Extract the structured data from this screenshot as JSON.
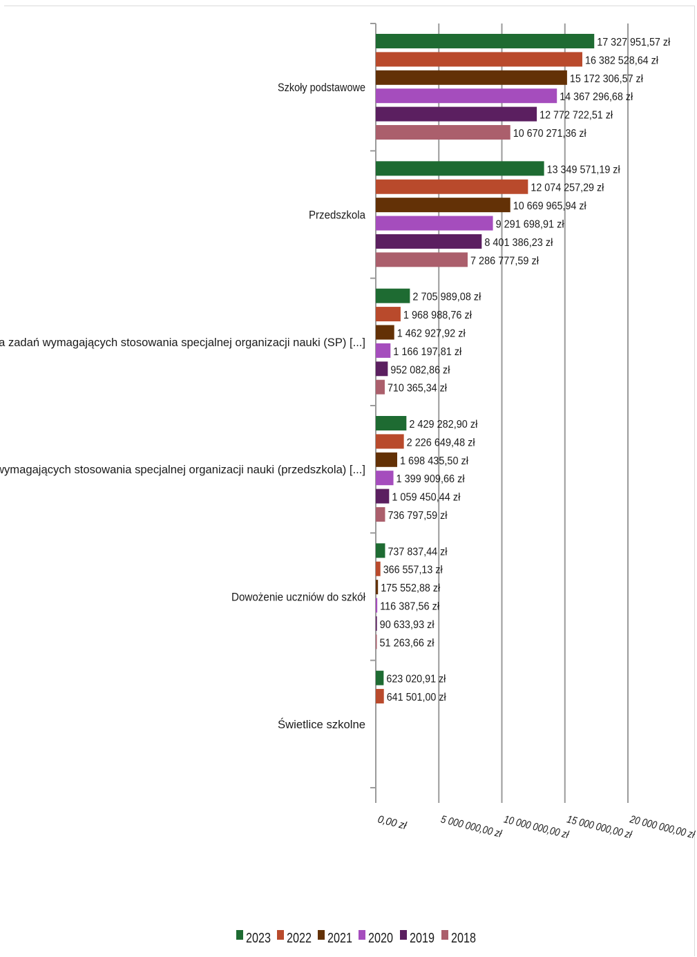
{
  "chart_data": {
    "type": "bar",
    "orientation": "horizontal",
    "title": "",
    "xlabel": "",
    "ylabel": "",
    "xlim": [
      0,
      20000000
    ],
    "x_ticks": [
      {
        "value": 0,
        "label": "0,00 zł"
      },
      {
        "value": 5000000,
        "label": "5 000 000,00 zł"
      },
      {
        "value": 10000000,
        "label": "10 000 000,00 zł"
      },
      {
        "value": 15000000,
        "label": "15 000 000,00 zł"
      },
      {
        "value": 20000000,
        "label": "20 000 000,00 zł"
      }
    ],
    "grid": "vertical",
    "legend_position": "bottom",
    "categories": [
      "Szkoły podstawowe",
      "Przedszkola",
      "Realizacja zadań wymagających stosowania specjalnej organizacji nauki (SP) [...]",
      "Realizacja zadań wymagających stosowania specjalnej organizacji nauki (przedszkola) [...]",
      "Dowożenie uczniów do szkół",
      "Świetlice szkolne"
    ],
    "series": [
      {
        "name": "2023",
        "color": "#1e6b32",
        "values": [
          17327951.57,
          13349571.19,
          2705989.08,
          2429282.9,
          737837.44,
          623020.91
        ],
        "labels": [
          "17 327 951,57 zł",
          "13 349 571,19 zł",
          "2 705 989,08 zł",
          "2 429 282,90 zł",
          "737 837,44 zł",
          "623 020,91 zł"
        ]
      },
      {
        "name": "2022",
        "color": "#b94a2c",
        "values": [
          16382528.64,
          12074257.29,
          1968988.76,
          2226649.48,
          366557.13,
          641501.0
        ],
        "labels": [
          "16 382 528,64 zł",
          "12 074 257,29 zł",
          "1 968 988,76 zł",
          "2 226 649,48 zł",
          "366 557,13 zł",
          "641 501,00 zł"
        ]
      },
      {
        "name": "2021",
        "color": "#633106",
        "values": [
          15172306.57,
          10669965.94,
          1462927.92,
          1698435.5,
          175552.88,
          null
        ],
        "labels": [
          "15 172 306,57 zł",
          "10 669 965,94 zł",
          "1 462 927,92 zł",
          "1 698 435,50 zł",
          "175 552,88 zł",
          ""
        ]
      },
      {
        "name": "2020",
        "color": "#a54dbd",
        "values": [
          14367296.68,
          9291698.91,
          1166197.81,
          1399909.66,
          116387.56,
          null
        ],
        "labels": [
          "14 367 296,68 zł",
          "9 291 698,91 zł",
          "1 166 197,81 zł",
          "1 399 909,66 zł",
          "116 387,56 zł",
          ""
        ]
      },
      {
        "name": "2019",
        "color": "#5b1f60",
        "values": [
          12772722.51,
          8401386.23,
          952082.86,
          1059450.44,
          90633.93,
          null
        ],
        "labels": [
          "12 772 722,51 zł",
          "8 401 386,23 zł",
          "952 082,86 zł",
          "1 059 450,44 zł",
          "90 633,93 zł",
          ""
        ]
      },
      {
        "name": "2018",
        "color": "#ab5f6c",
        "values": [
          10670271.36,
          7286777.59,
          710365.34,
          736797.59,
          51263.66,
          null
        ],
        "labels": [
          "10 670 271,36 zł",
          "7 286 777,59 zł",
          "710 365,34 zł",
          "736 797,59 zł",
          "51 263,66 zł",
          ""
        ]
      }
    ]
  }
}
